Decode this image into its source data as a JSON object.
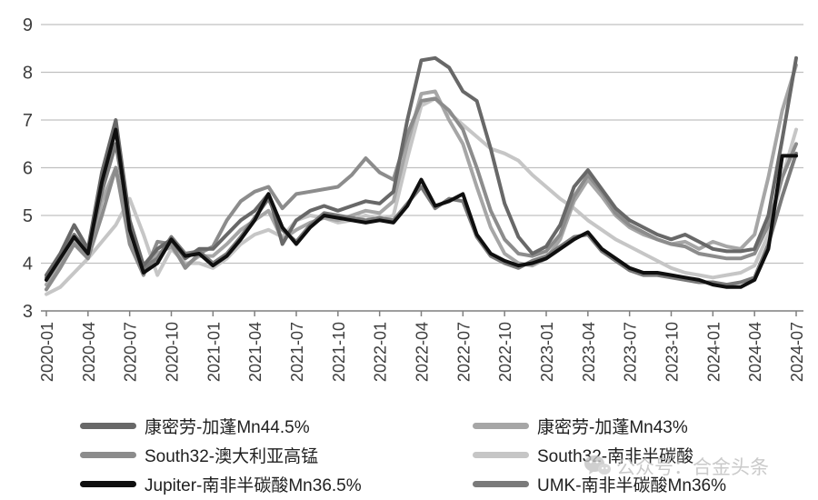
{
  "watermark": {
    "text": "公众号：合金头条"
  },
  "chart_data": {
    "type": "line",
    "title": "",
    "xlabel": "",
    "ylabel": "",
    "ylim": [
      3,
      9
    ],
    "yticks": [
      3,
      4,
      5,
      6,
      7,
      8,
      9
    ],
    "grid": true,
    "legend_position": "bottom",
    "x": [
      "2020-01",
      "2020-02",
      "2020-03",
      "2020-04",
      "2020-05",
      "2020-06",
      "2020-07",
      "2020-08",
      "2020-09",
      "2020-10",
      "2020-11",
      "2020-12",
      "2021-01",
      "2021-02",
      "2021-03",
      "2021-04",
      "2021-05",
      "2021-06",
      "2021-07",
      "2021-08",
      "2021-09",
      "2021-10",
      "2021-11",
      "2021-12",
      "2022-01",
      "2022-02",
      "2022-03",
      "2022-04",
      "2022-05",
      "2022-06",
      "2022-07",
      "2022-08",
      "2022-09",
      "2022-10",
      "2022-11",
      "2022-12",
      "2023-01",
      "2023-02",
      "2023-03",
      "2023-04",
      "2023-05",
      "2023-06",
      "2023-07",
      "2023-08",
      "2023-09",
      "2023-10",
      "2023-11",
      "2023-12",
      "2024-01",
      "2024-02",
      "2024-03",
      "2024-04",
      "2024-05",
      "2024-06",
      "2024-07"
    ],
    "x_tick_labels": [
      "2020-01",
      "2020-04",
      "2020-07",
      "2020-10",
      "2021-01",
      "2021-04",
      "2021-07",
      "2021-10",
      "2022-01",
      "2022-04",
      "2022-07",
      "2022-10",
      "2023-01",
      "2023-04",
      "2023-07",
      "2023-10",
      "2024-01",
      "2024-04",
      "2024-07"
    ],
    "series": [
      {
        "name": "康密劳-加蓬Mn44.5%",
        "color": "#686868",
        "values": [
          3.75,
          4.2,
          4.8,
          4.3,
          5.9,
          7.0,
          4.9,
          3.95,
          4.3,
          4.5,
          4.1,
          4.3,
          4.3,
          4.6,
          4.9,
          5.1,
          5.45,
          4.4,
          4.9,
          5.1,
          5.2,
          5.1,
          5.2,
          5.3,
          5.25,
          5.5,
          7.0,
          8.25,
          8.3,
          8.1,
          7.6,
          7.4,
          6.4,
          5.25,
          4.55,
          4.2,
          4.35,
          4.8,
          5.6,
          5.95,
          5.55,
          5.15,
          4.9,
          4.75,
          4.6,
          4.5,
          4.6,
          4.45,
          4.3,
          4.25,
          4.25,
          4.3,
          5.0,
          6.6,
          8.3
        ]
      },
      {
        "name": "康密劳-加蓬Mn43%",
        "color": "#a6a6a6",
        "values": [
          3.55,
          4.0,
          4.5,
          4.15,
          5.3,
          6.0,
          4.5,
          3.8,
          4.2,
          4.35,
          3.95,
          4.15,
          4.15,
          4.4,
          4.7,
          4.9,
          5.1,
          4.5,
          4.7,
          4.85,
          4.95,
          4.9,
          5.0,
          5.1,
          5.05,
          5.3,
          6.5,
          7.55,
          7.6,
          7.0,
          6.5,
          5.6,
          4.75,
          4.2,
          4.0,
          3.95,
          4.1,
          4.5,
          5.3,
          5.75,
          5.4,
          5.0,
          4.75,
          4.6,
          4.5,
          4.4,
          4.45,
          4.3,
          4.45,
          4.35,
          4.3,
          4.6,
          5.8,
          7.2,
          8.15
        ]
      },
      {
        "name": "South32-澳大利亚高锰",
        "color": "#8c8c8c",
        "values": [
          3.45,
          3.9,
          4.4,
          4.1,
          5.0,
          6.0,
          4.4,
          3.75,
          4.45,
          4.4,
          3.9,
          4.2,
          4.35,
          4.9,
          5.3,
          5.5,
          5.6,
          5.15,
          5.45,
          5.5,
          5.55,
          5.6,
          5.85,
          6.2,
          5.9,
          5.75,
          6.7,
          7.4,
          7.45,
          7.2,
          6.8,
          6.0,
          5.1,
          4.5,
          4.2,
          4.15,
          4.25,
          4.6,
          5.4,
          5.85,
          5.5,
          5.05,
          4.8,
          4.65,
          4.5,
          4.4,
          4.35,
          4.2,
          4.15,
          4.1,
          4.1,
          4.2,
          4.8,
          5.8,
          6.5
        ]
      },
      {
        "name": "South32-南非半碳酸",
        "color": "#c6c6c6",
        "values": [
          3.35,
          3.5,
          3.8,
          4.1,
          4.45,
          4.8,
          5.35,
          4.6,
          3.75,
          4.3,
          4.0,
          4.0,
          3.9,
          4.1,
          4.4,
          4.6,
          4.7,
          4.55,
          4.9,
          5.0,
          4.95,
          4.85,
          4.9,
          5.0,
          4.9,
          5.0,
          6.2,
          7.3,
          7.45,
          7.15,
          6.9,
          6.65,
          6.4,
          6.3,
          6.15,
          5.85,
          5.6,
          5.35,
          5.15,
          4.9,
          4.7,
          4.5,
          4.35,
          4.2,
          4.05,
          3.9,
          3.8,
          3.75,
          3.7,
          3.75,
          3.8,
          3.95,
          4.6,
          5.8,
          6.8
        ]
      },
      {
        "name": "Jupiter-南非半碳酸Mn36.5%",
        "color": "#0f0f0f",
        "values": [
          3.65,
          4.1,
          4.55,
          4.2,
          5.7,
          6.8,
          4.7,
          3.8,
          4.0,
          4.5,
          4.15,
          4.2,
          3.95,
          4.15,
          4.5,
          4.9,
          5.45,
          4.75,
          4.4,
          4.75,
          5.0,
          4.95,
          4.9,
          4.85,
          4.9,
          4.85,
          5.2,
          5.75,
          5.2,
          5.3,
          5.45,
          4.6,
          4.2,
          4.05,
          3.95,
          4.0,
          4.1,
          4.3,
          4.5,
          4.65,
          4.3,
          4.1,
          3.9,
          3.8,
          3.8,
          3.75,
          3.7,
          3.65,
          3.55,
          3.5,
          3.5,
          3.65,
          4.3,
          6.25,
          6.25
        ]
      },
      {
        "name": "UMK-南非半碳酸Mn36%",
        "color": "#7a7a7a",
        "values": [
          3.7,
          4.15,
          4.6,
          4.25,
          5.5,
          6.5,
          4.8,
          3.9,
          4.1,
          4.55,
          4.2,
          4.25,
          4.0,
          4.2,
          4.55,
          4.95,
          5.35,
          4.7,
          4.45,
          4.8,
          5.05,
          5.0,
          4.95,
          4.9,
          4.95,
          4.9,
          5.25,
          5.6,
          5.15,
          5.35,
          5.3,
          4.55,
          4.15,
          4.0,
          3.9,
          4.05,
          4.15,
          4.35,
          4.55,
          4.6,
          4.25,
          4.05,
          3.85,
          3.75,
          3.75,
          3.7,
          3.65,
          3.6,
          3.6,
          3.55,
          3.6,
          3.7,
          4.4,
          5.4,
          6.3
        ]
      }
    ]
  }
}
